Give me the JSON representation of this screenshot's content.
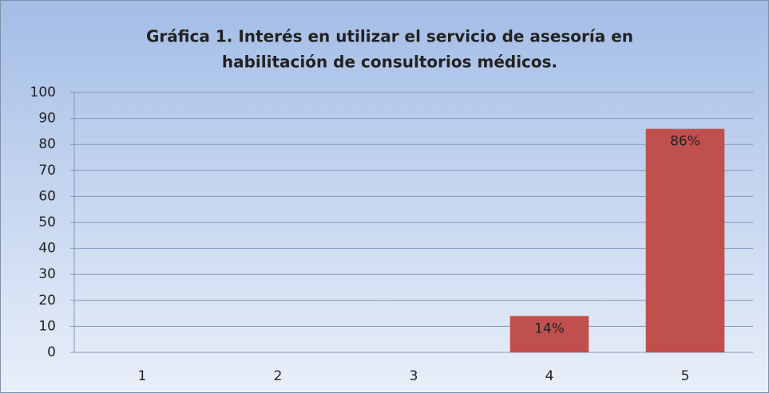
{
  "chart_data": {
    "type": "bar",
    "title": [
      "Gráfica 1. Interés  en utilizar el servicio de asesoría en",
      "habilitación de consultorios médicos."
    ],
    "categories": [
      "1",
      "2",
      "3",
      "4",
      "5"
    ],
    "values": [
      0,
      0,
      0,
      14,
      86
    ],
    "value_labels": [
      null,
      null,
      null,
      "14%",
      "86%"
    ],
    "color": "#c0504d",
    "ylim": [
      0,
      100
    ],
    "yticks": [
      0,
      10,
      20,
      30,
      40,
      50,
      60,
      70,
      80,
      90,
      100
    ],
    "grid": true
  }
}
